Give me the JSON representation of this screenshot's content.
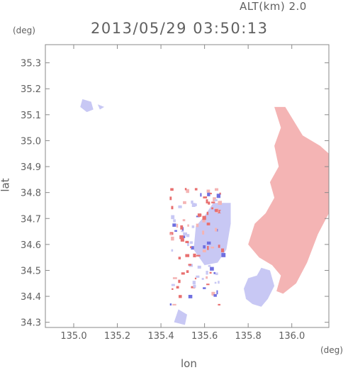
{
  "header": {
    "altitude_label": "ALT(km) 2.0",
    "timestamp": "2013/05/29 03:50:13"
  },
  "axes": {
    "x_label": "lon",
    "y_label": "lat",
    "x_unit": "(deg)",
    "y_unit": "(deg)"
  },
  "chart_data": {
    "type": "heatmap",
    "title": "2013/05/29 03:50:13",
    "xlabel": "lon",
    "ylabel": "lat",
    "xlim": [
      134.87,
      136.17
    ],
    "ylim": [
      34.28,
      35.37
    ],
    "x_ticks": [
      "135.0",
      "135.2",
      "135.4",
      "135.6",
      "135.8",
      "136.0"
    ],
    "x_tick_values": [
      135.0,
      135.2,
      135.4,
      135.6,
      135.8,
      136.0
    ],
    "y_ticks": [
      "34.3",
      "34.4",
      "34.5",
      "34.6",
      "34.7",
      "34.8",
      "34.9",
      "35.0",
      "35.1",
      "35.2",
      "35.3"
    ],
    "y_tick_values": [
      34.3,
      34.4,
      34.5,
      34.6,
      34.7,
      34.8,
      34.9,
      35.0,
      35.1,
      35.2,
      35.3
    ],
    "grid": false,
    "colors": {
      "positive": "#f4b4b4",
      "positive_strong": "#e87070",
      "negative": "#c8c8f4",
      "negative_strong": "#7070e0"
    },
    "regions": [
      {
        "sign": "positive",
        "lon": 136.0,
        "lat": 34.85
      },
      {
        "sign": "negative",
        "lon": 135.62,
        "lat": 34.62
      },
      {
        "sign": "negative",
        "lon": 135.85,
        "lat": 34.45
      },
      {
        "sign": "negative",
        "lon": 135.07,
        "lat": 35.13
      }
    ]
  }
}
